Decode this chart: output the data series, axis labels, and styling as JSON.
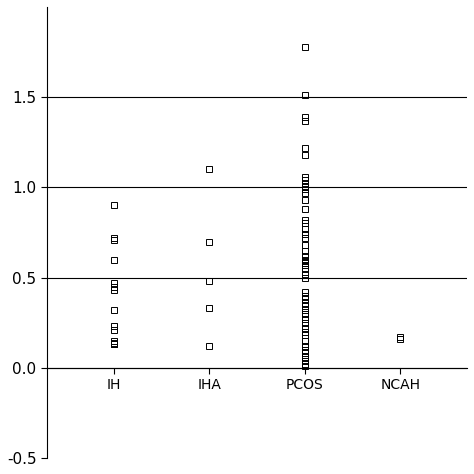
{
  "categories": [
    "IH",
    "IHA",
    "PCOS",
    "NCAH"
  ],
  "IH": [
    0.9,
    0.72,
    0.71,
    0.6,
    0.47,
    0.45,
    0.43,
    0.32,
    0.23,
    0.21,
    0.15,
    0.14,
    0.13,
    0.13
  ],
  "IHA": [
    1.1,
    0.7,
    0.48,
    0.33,
    0.12
  ],
  "PCOS": [
    1.78,
    1.51,
    1.39,
    1.37,
    1.22,
    1.18,
    1.06,
    1.04,
    1.02,
    1.01,
    1.0,
    0.99,
    0.97,
    0.93,
    0.88,
    0.82,
    0.8,
    0.77,
    0.74,
    0.72,
    0.68,
    0.65,
    0.62,
    0.6,
    0.59,
    0.58,
    0.57,
    0.55,
    0.52,
    0.5,
    0.42,
    0.4,
    0.38,
    0.36,
    0.34,
    0.32,
    0.3,
    0.27,
    0.25,
    0.22,
    0.2,
    0.18,
    0.15,
    0.12,
    0.1,
    0.08,
    0.06,
    0.04,
    0.02,
    0.01
  ],
  "NCAH": [
    0.17,
    0.16
  ],
  "ylim": [
    -0.5,
    2.0
  ],
  "hlines": [
    0.0,
    0.5,
    1.0,
    1.5
  ],
  "marker_size": 4,
  "marker_color": "black",
  "background_color": "white",
  "tick_label_fontsize": 11,
  "cat_label_fontsize": 12,
  "yticks": [
    -0.5,
    0.0,
    0.5,
    1.0,
    1.5
  ],
  "ytick_labels": [
    "-0.5",
    "0.0",
    "0.5",
    "1.0",
    "1.5"
  ]
}
